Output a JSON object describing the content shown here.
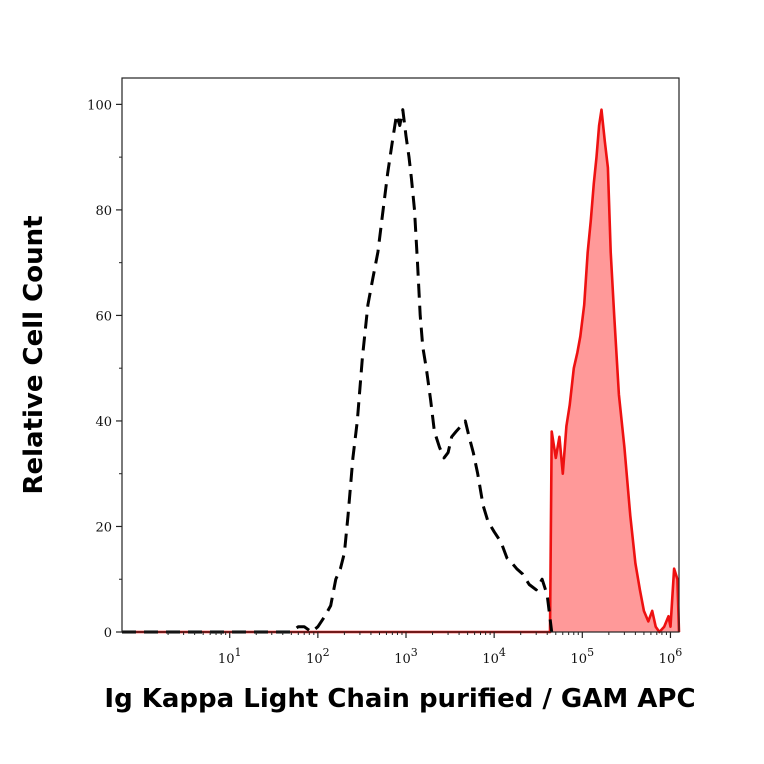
{
  "chart_data": {
    "type": "area",
    "title": "",
    "xlabel": "Ig Kappa Light Chain purified / GAM APC",
    "ylabel": "Relative Cell Count",
    "xscale": "log",
    "xlim": [
      0.6,
      1250000
    ],
    "ylim": [
      0,
      105
    ],
    "grid": false,
    "xticks": [
      {
        "value": 10,
        "base": "10",
        "exp": "1"
      },
      {
        "value": 100,
        "base": "10",
        "exp": "2"
      },
      {
        "value": 1000,
        "base": "10",
        "exp": "3"
      },
      {
        "value": 10000,
        "base": "10",
        "exp": "4"
      },
      {
        "value": 100000,
        "base": "10",
        "exp": "5"
      },
      {
        "value": 1000000,
        "base": "10",
        "exp": "6"
      }
    ],
    "yticks": [
      0,
      20,
      40,
      60,
      80,
      100
    ],
    "series": [
      {
        "style": "dashed",
        "color": "#000000",
        "fill": "none",
        "points": [
          [
            0.6,
            0
          ],
          [
            50,
            0
          ],
          [
            60,
            1
          ],
          [
            70,
            1
          ],
          [
            85,
            0
          ],
          [
            100,
            1
          ],
          [
            120,
            3
          ],
          [
            140,
            5
          ],
          [
            160,
            10
          ],
          [
            180,
            12
          ],
          [
            200,
            15
          ],
          [
            220,
            22
          ],
          [
            250,
            33
          ],
          [
            280,
            40
          ],
          [
            320,
            52
          ],
          [
            370,
            62
          ],
          [
            420,
            67
          ],
          [
            480,
            72
          ],
          [
            550,
            80
          ],
          [
            620,
            87
          ],
          [
            700,
            93
          ],
          [
            780,
            98
          ],
          [
            850,
            96
          ],
          [
            920,
            99
          ],
          [
            1000,
            94
          ],
          [
            1080,
            90
          ],
          [
            1150,
            86
          ],
          [
            1250,
            80
          ],
          [
            1350,
            70
          ],
          [
            1450,
            60
          ],
          [
            1550,
            54
          ],
          [
            1700,
            50
          ],
          [
            1900,
            44
          ],
          [
            2100,
            38
          ],
          [
            2400,
            35
          ],
          [
            2700,
            33
          ],
          [
            3000,
            34
          ],
          [
            3300,
            37
          ],
          [
            3700,
            38
          ],
          [
            4200,
            39
          ],
          [
            4700,
            40
          ],
          [
            5200,
            37
          ],
          [
            5800,
            34
          ],
          [
            6500,
            30
          ],
          [
            7500,
            24
          ],
          [
            8500,
            21
          ],
          [
            10000,
            19
          ],
          [
            12000,
            17
          ],
          [
            14000,
            14
          ],
          [
            16000,
            13
          ],
          [
            18000,
            12
          ],
          [
            21000,
            11
          ],
          [
            25000,
            9
          ],
          [
            30000,
            8
          ],
          [
            35000,
            10
          ],
          [
            40000,
            7
          ],
          [
            45000,
            0
          ]
        ]
      },
      {
        "style": "solid",
        "color": "#ee1111",
        "fill": "#ff9999",
        "points": [
          [
            0.6,
            0
          ],
          [
            43000,
            0
          ],
          [
            45000,
            38
          ],
          [
            50000,
            33
          ],
          [
            55000,
            37
          ],
          [
            60000,
            30
          ],
          [
            66000,
            39
          ],
          [
            72000,
            43
          ],
          [
            80000,
            50
          ],
          [
            88000,
            53
          ],
          [
            95000,
            56
          ],
          [
            105000,
            62
          ],
          [
            115000,
            72
          ],
          [
            125000,
            78
          ],
          [
            135000,
            85
          ],
          [
            145000,
            90
          ],
          [
            155000,
            96
          ],
          [
            165000,
            99
          ],
          [
            180000,
            93
          ],
          [
            195000,
            88
          ],
          [
            210000,
            72
          ],
          [
            230000,
            60
          ],
          [
            260000,
            45
          ],
          [
            300000,
            35
          ],
          [
            350000,
            22
          ],
          [
            400000,
            13
          ],
          [
            450000,
            8
          ],
          [
            500000,
            4
          ],
          [
            560000,
            2
          ],
          [
            620000,
            4
          ],
          [
            680000,
            1
          ],
          [
            750000,
            0
          ],
          [
            850000,
            1
          ],
          [
            950000,
            3
          ],
          [
            1000000,
            1
          ],
          [
            1100000,
            12
          ],
          [
            1200000,
            10
          ],
          [
            1250000,
            0
          ]
        ]
      }
    ]
  }
}
